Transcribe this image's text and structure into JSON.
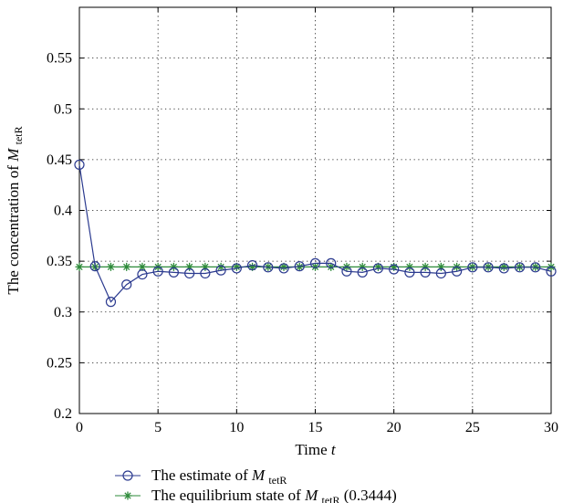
{
  "chart_data": {
    "type": "line",
    "xlabel": {
      "text": "Time",
      "var": "t"
    },
    "ylabel": {
      "text": "The concentration of",
      "var": "M",
      "sub": "tetR"
    },
    "xlim": [
      0,
      30
    ],
    "ylim": [
      0.2,
      0.6
    ],
    "xticks": [
      0,
      5,
      10,
      15,
      20,
      25,
      30
    ],
    "yticks": [
      0.2,
      0.25,
      0.3,
      0.35,
      0.4,
      0.45,
      0.5,
      0.55
    ],
    "xtick_labels": [
      "0",
      "5",
      "10",
      "15",
      "20",
      "25",
      "30"
    ],
    "ytick_labels": [
      "0.2",
      "0.25",
      "0.3",
      "0.35",
      "0.4",
      "0.45",
      "0.5",
      "0.55"
    ],
    "grid": true,
    "legend_position": "bottom",
    "x": [
      0,
      1,
      2,
      3,
      4,
      5,
      6,
      7,
      8,
      9,
      10,
      11,
      12,
      13,
      14,
      15,
      16,
      17,
      18,
      19,
      20,
      21,
      22,
      23,
      24,
      25,
      26,
      27,
      28,
      29,
      30
    ],
    "series": [
      {
        "name": {
          "prefix": "The estimate of",
          "var": "M",
          "sub": "tetR",
          "suffix": ""
        },
        "marker": "circle",
        "color": "#2b3a8f",
        "values": [
          0.445,
          0.345,
          0.31,
          0.327,
          0.337,
          0.34,
          0.339,
          0.338,
          0.338,
          0.341,
          0.343,
          0.346,
          0.344,
          0.343,
          0.345,
          0.348,
          0.348,
          0.34,
          0.339,
          0.343,
          0.342,
          0.339,
          0.339,
          0.338,
          0.34,
          0.344,
          0.344,
          0.343,
          0.344,
          0.344,
          0.34
        ]
      },
      {
        "name": {
          "prefix": "The equilibrium state of",
          "var": "M",
          "sub": "tetR",
          "suffix": "(0.3444)"
        },
        "marker": "star",
        "color": "#2e8b3a",
        "values": [
          0.3444,
          0.3444,
          0.3444,
          0.3444,
          0.3444,
          0.3444,
          0.3444,
          0.3444,
          0.3444,
          0.3444,
          0.3444,
          0.3444,
          0.3444,
          0.3444,
          0.3444,
          0.3444,
          0.3444,
          0.3444,
          0.3444,
          0.3444,
          0.3444,
          0.3444,
          0.3444,
          0.3444,
          0.3444,
          0.3444,
          0.3444,
          0.3444,
          0.3444,
          0.3444,
          0.3444
        ]
      }
    ]
  }
}
